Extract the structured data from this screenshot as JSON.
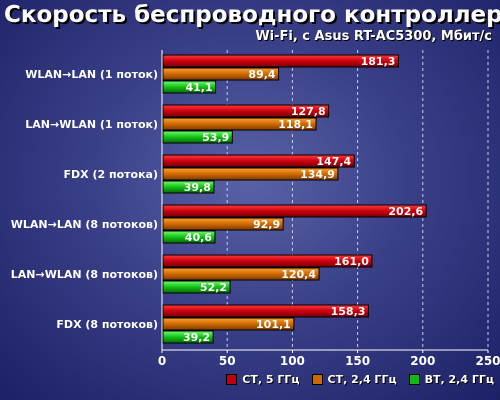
{
  "chart_data": {
    "type": "bar",
    "orientation": "horizontal",
    "title": "Скорость беспроводного контроллера",
    "subtitle": "Wi-Fi, с Asus RT-AC5300, Мбит/с",
    "categories": [
      "WLAN→LAN (1 поток)",
      "LAN→WLAN (1 поток)",
      "FDX (2 потока)",
      "WLAN→LAN (8 потоков)",
      "LAN→WLAN (8 потоков)",
      "FDX (8 потоков)"
    ],
    "series": [
      {
        "name": "СТ, 5 ГГц",
        "color": "#c0000e",
        "values": [
          181.3,
          127.8,
          147.4,
          202.6,
          161.0,
          158.3
        ]
      },
      {
        "name": "СТ, 2,4 ГГц",
        "color": "#d06a00",
        "values": [
          89.4,
          118.1,
          134.9,
          92.9,
          120.4,
          101.1
        ]
      },
      {
        "name": "ВТ, 2,4 ГГц",
        "color": "#14b814",
        "values": [
          41.1,
          53.9,
          39.8,
          40.6,
          52.2,
          39.2
        ]
      }
    ],
    "value_labels": [
      [
        "181,3",
        "127,8",
        "147,4",
        "202,6",
        "161,0",
        "158,3"
      ],
      [
        "89,4",
        "118,1",
        "134,9",
        "92,9",
        "120,4",
        "101,1"
      ],
      [
        "41,1",
        "53,9",
        "39,8",
        "40,6",
        "52,2",
        "39,2"
      ]
    ],
    "xlim": [
      0,
      250
    ],
    "xticks": [
      0,
      50,
      100,
      150,
      200,
      250
    ],
    "grid": true,
    "legend_position": "bottom-right"
  }
}
